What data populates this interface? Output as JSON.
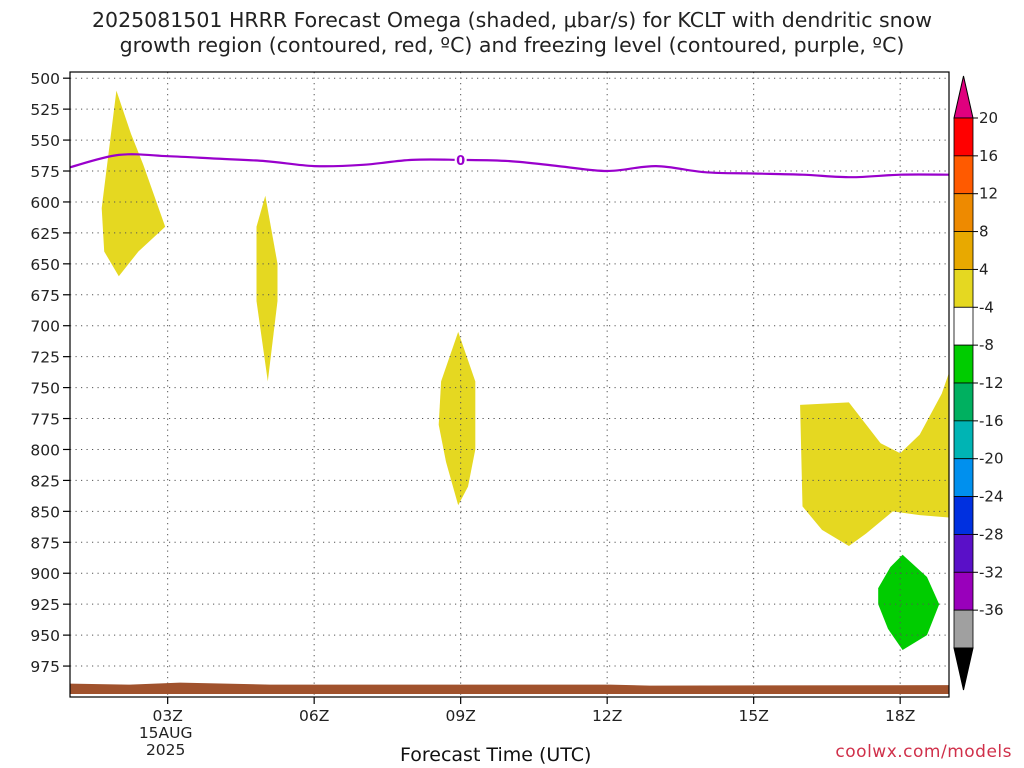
{
  "title": "2025081501 HRRR Forecast Omega (shaded, μbar/s) for KCLT with dendritic snow\ngrowth region (contoured, red, ºC) and freezing level (contoured, purple, ºC)",
  "credit": "coolwx.com/models",
  "chart_data": {
    "type": "area",
    "title": "2025081501 HRRR Forecast Omega (shaded, μbar/s) for KCLT with dendritic snow growth region (contoured, red, ºC) and freezing level (contoured, purple, ºC)",
    "xlabel": "Forecast Time (UTC)",
    "ylabel": "",
    "x_range_hours": [
      1,
      19
    ],
    "y_range": [
      1000,
      495
    ],
    "y_ticks": [
      500,
      525,
      550,
      575,
      600,
      625,
      650,
      675,
      700,
      725,
      750,
      775,
      800,
      825,
      850,
      875,
      900,
      925,
      950,
      975
    ],
    "x_ticks": [
      {
        "hour": 3,
        "label": "03Z",
        "sublabel": [
          "15AUG",
          "2025"
        ]
      },
      {
        "hour": 6,
        "label": "06Z"
      },
      {
        "hour": 9,
        "label": "09Z"
      },
      {
        "hour": 12,
        "label": "12Z"
      },
      {
        "hour": 15,
        "label": "15Z"
      },
      {
        "hour": 18,
        "label": "18Z"
      }
    ],
    "grid": true,
    "colorbar": {
      "labels": [
        "20",
        "16",
        "12",
        "8",
        "4",
        "-4",
        "-8",
        "-12",
        "-16",
        "-20",
        "-24",
        "-28",
        "-32",
        "-36"
      ],
      "colors": [
        "#ff0000",
        "#ff5a00",
        "#ee8a00",
        "#e8a900",
        "#e5d821",
        "#ffffff",
        "#00cc00",
        "#00b060",
        "#00b4b4",
        "#0090ee",
        "#0030e0",
        "#5a10c8",
        "#9900bb",
        "#a0a0a0"
      ],
      "top_arrow_color": "#e0007e",
      "bottom_arrow_color": "#000000"
    },
    "freezing_level": {
      "label": "0",
      "color": "#9900cc",
      "x": [
        1,
        2,
        3,
        4,
        5,
        6,
        7,
        8,
        9,
        10,
        11,
        12,
        13,
        14,
        15,
        16,
        17,
        18,
        19
      ],
      "y": [
        572,
        562,
        563,
        565,
        567,
        571,
        570,
        566,
        566,
        567,
        571,
        575,
        571,
        576,
        577,
        578,
        580,
        578,
        578
      ]
    },
    "omega_regions": [
      {
        "value_range": "4 to 8",
        "color": "#e5d821",
        "points": [
          [
            1.65,
            605
          ],
          [
            1.95,
            510
          ],
          [
            2.25,
            545
          ],
          [
            2.5,
            570
          ],
          [
            2.95,
            620
          ],
          [
            2.4,
            640
          ],
          [
            2.0,
            660
          ],
          [
            1.7,
            640
          ]
        ]
      },
      {
        "value_range": "4 to 8",
        "color": "#e5d821",
        "points": [
          [
            4.82,
            620
          ],
          [
            5.0,
            595
          ],
          [
            5.25,
            650
          ],
          [
            5.25,
            680
          ],
          [
            5.05,
            745
          ],
          [
            4.82,
            680
          ]
        ]
      },
      {
        "value_range": "4 to 8",
        "color": "#e5d821",
        "points": [
          [
            8.6,
            745
          ],
          [
            8.95,
            705
          ],
          [
            9.3,
            745
          ],
          [
            9.3,
            800
          ],
          [
            9.15,
            830
          ],
          [
            8.95,
            845
          ],
          [
            8.7,
            810
          ],
          [
            8.55,
            780
          ]
        ]
      },
      {
        "value_range": "4 to 8",
        "color": "#e5d821",
        "points": [
          [
            15.95,
            764
          ],
          [
            16.95,
            762
          ],
          [
            17.6,
            795
          ],
          [
            18.0,
            803
          ],
          [
            18.4,
            788
          ],
          [
            18.85,
            755
          ],
          [
            19.0,
            738
          ],
          [
            19.0,
            855
          ],
          [
            18.4,
            853
          ],
          [
            17.85,
            850
          ],
          [
            17.3,
            868
          ],
          [
            16.95,
            878
          ],
          [
            16.4,
            865
          ],
          [
            16.0,
            846
          ]
        ]
      },
      {
        "value_range": "-4 to -8",
        "color": "#00cc00",
        "points": [
          [
            17.55,
            912
          ],
          [
            17.8,
            895
          ],
          [
            18.05,
            885
          ],
          [
            18.55,
            903
          ],
          [
            18.8,
            925
          ],
          [
            18.55,
            950
          ],
          [
            18.05,
            962
          ],
          [
            17.75,
            945
          ],
          [
            17.55,
            925
          ]
        ]
      }
    ],
    "terrain": {
      "color": "#a0522d",
      "top_pressure": 990
    }
  }
}
